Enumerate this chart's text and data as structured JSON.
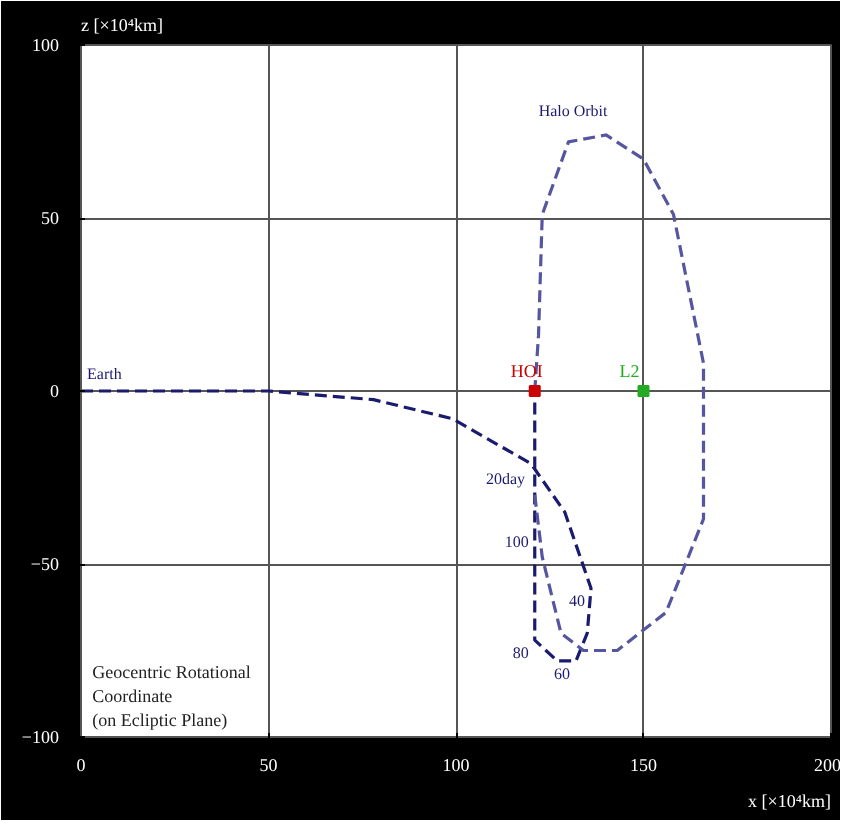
{
  "chart_data": {
    "type": "line",
    "xlabel": "x [×10⁴km]",
    "ylabel": "z [×10⁴km]",
    "xlim": [
      0,
      200
    ],
    "ylim": [
      -100,
      100
    ],
    "xticks": [
      0,
      50,
      100,
      150,
      200
    ],
    "yticks": [
      -100,
      -50,
      0,
      50,
      100
    ],
    "grid": true,
    "line_style": "dashed",
    "series": [
      {
        "color": "#1a1a6e",
        "x": [
          0,
          20,
          50,
          78,
          99,
          120,
          129,
          136,
          135,
          132,
          127,
          121,
          121,
          121,
          121
        ],
        "values": [
          0,
          0,
          0,
          -2.5,
          -8,
          -21,
          -35,
          -57,
          -70,
          -78,
          -78,
          -72,
          -60,
          -21,
          0
        ]
      },
      {
        "color": "#5555a0",
        "x": [
          121,
          123,
          128,
          134,
          143,
          156,
          166,
          166,
          166,
          158,
          150,
          140,
          130,
          123,
          122,
          121
        ],
        "values": [
          -30,
          -48,
          -70,
          -75,
          -75,
          -64,
          -37,
          -12,
          8,
          51,
          67,
          74,
          72,
          51,
          16,
          0
        ]
      },
      {
        "type": "scatter",
        "name": "HOI",
        "color": "#cc0000",
        "x": [
          121
        ],
        "values": [
          0
        ]
      },
      {
        "type": "scatter",
        "name": "L2",
        "color": "#22aa22",
        "x": [
          150
        ],
        "values": [
          0
        ]
      }
    ],
    "annotations": [
      {
        "text": "Earth",
        "x": 0,
        "y": 0
      },
      {
        "text": "Halo Orbit",
        "x": 142,
        "y": 76
      },
      {
        "text": "20day",
        "x": 120,
        "y": -21
      },
      {
        "text": "100",
        "x": 121,
        "y": -40
      },
      {
        "text": "40",
        "x": 136,
        "y": -57
      },
      {
        "text": "60",
        "x": 132,
        "y": -78
      },
      {
        "text": "80",
        "x": 121,
        "y": -72
      },
      "Geocentric Rotational Coordinate (on Ecliptic Plane)"
    ]
  }
}
